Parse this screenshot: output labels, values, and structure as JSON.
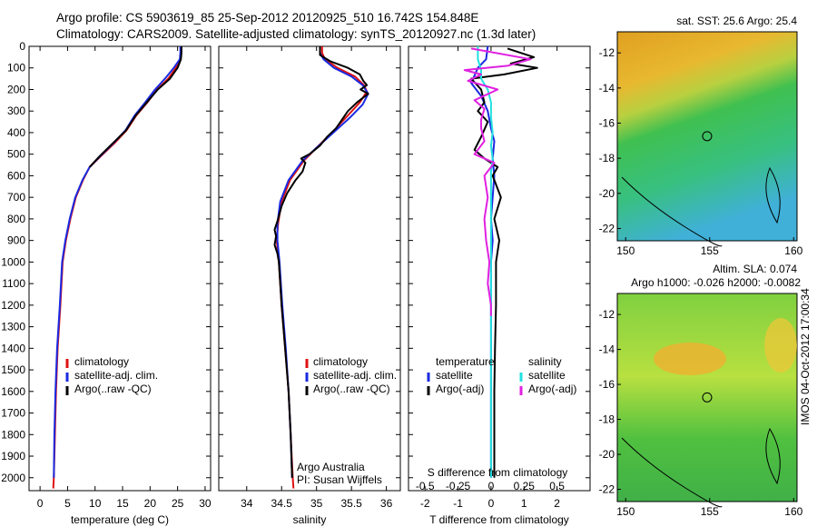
{
  "header": {
    "line1": "Argo profile: CS 5903619_85 25-Sep-2012 20120925_510 16.742S 154.848E",
    "line2": "Climatology: CARS2009. Satellite-adjusted climatology: synTS_20120927.nc (1.3d later)"
  },
  "footer_text": "IMOS 04-Oct-2012 17:00:34",
  "colors": {
    "climatology": "#e01010",
    "satellite": "#1a2ae0",
    "argo": "#000000",
    "sat_salinity": "#22e0e0",
    "argo_salinity": "#e020e0"
  },
  "chart_data": [
    {
      "type": "line",
      "id": "temperature",
      "xlabel": "temperature (deg C)",
      "ylabel": "",
      "xlim": [
        -2,
        31
      ],
      "ylim": [
        2060,
        0
      ],
      "xticks": [
        0,
        5,
        10,
        15,
        20,
        25,
        30
      ],
      "yticks": [
        0,
        100,
        200,
        300,
        400,
        500,
        600,
        700,
        800,
        900,
        1000,
        1100,
        1200,
        1300,
        1400,
        1500,
        1600,
        1700,
        1800,
        1900,
        2000
      ],
      "legend": [
        "climatology",
        "satellite-adj. clim.",
        "Argo(..raw -QC)"
      ],
      "series": [
        {
          "name": "climatology",
          "color": "#e01010",
          "points": [
            [
              25.6,
              0
            ],
            [
              25.6,
              30
            ],
            [
              25.5,
              60
            ],
            [
              24.7,
              100
            ],
            [
              23.3,
              150
            ],
            [
              21.3,
              200
            ],
            [
              19.5,
              260
            ],
            [
              17.5,
              320
            ],
            [
              15.7,
              390
            ],
            [
              13.5,
              450
            ],
            [
              11.0,
              510
            ],
            [
              9.0,
              560
            ],
            [
              7.8,
              620
            ],
            [
              6.5,
              700
            ],
            [
              5.5,
              800
            ],
            [
              4.7,
              900
            ],
            [
              4.1,
              1000
            ],
            [
              3.7,
              1200
            ],
            [
              3.2,
              1400
            ],
            [
              2.9,
              1600
            ],
            [
              2.7,
              1800
            ],
            [
              2.5,
              2000
            ],
            [
              2.4,
              2050
            ]
          ]
        },
        {
          "name": "satellite-adj. clim.",
          "color": "#1a2ae0",
          "points": [
            [
              25.5,
              0
            ],
            [
              25.5,
              30
            ],
            [
              25.4,
              60
            ],
            [
              24.3,
              100
            ],
            [
              22.7,
              150
            ],
            [
              20.9,
              200
            ],
            [
              19.1,
              260
            ],
            [
              17.2,
              320
            ],
            [
              15.5,
              390
            ],
            [
              13.3,
              450
            ],
            [
              10.9,
              510
            ],
            [
              9.0,
              560
            ],
            [
              7.7,
              620
            ],
            [
              6.4,
              700
            ],
            [
              5.4,
              800
            ],
            [
              4.6,
              900
            ],
            [
              4.0,
              1000
            ],
            [
              3.6,
              1200
            ],
            [
              3.1,
              1400
            ],
            [
              2.8,
              1600
            ],
            [
              2.6,
              1800
            ],
            [
              2.5,
              2000
            ]
          ]
        },
        {
          "name": "Argo(..raw -QC)",
          "color": "#000000",
          "points": [
            [
              25.7,
              0
            ],
            [
              25.7,
              30
            ],
            [
              25.6,
              60
            ],
            [
              25.0,
              100
            ],
            [
              23.6,
              150
            ],
            [
              21.4,
              200
            ],
            [
              19.4,
              260
            ],
            [
              17.4,
              320
            ],
            [
              15.6,
              390
            ],
            [
              13.2,
              450
            ],
            [
              10.8,
              510
            ],
            [
              9.0,
              560
            ]
          ]
        }
      ]
    },
    {
      "type": "line",
      "id": "salinity",
      "xlabel": "salinity",
      "ylabel": "",
      "xlim": [
        33.6,
        36.2
      ],
      "ylim": [
        2060,
        0
      ],
      "xticks": [
        34,
        34.5,
        35,
        35.5,
        36
      ],
      "legend": [
        "climatology",
        "satellite-adj. clim.",
        "Argo(..raw -QC)"
      ],
      "annotation": [
        "Argo Australia",
        "PI: Susan Wijffels"
      ],
      "series": [
        {
          "name": "climatology",
          "color": "#e01010",
          "points": [
            [
              35.08,
              0
            ],
            [
              35.08,
              30
            ],
            [
              35.12,
              60
            ],
            [
              35.3,
              100
            ],
            [
              35.55,
              140
            ],
            [
              35.68,
              180
            ],
            [
              35.72,
              210
            ],
            [
              35.62,
              260
            ],
            [
              35.45,
              320
            ],
            [
              35.22,
              400
            ],
            [
              35.0,
              470
            ],
            [
              34.82,
              530
            ],
            [
              34.62,
              620
            ],
            [
              34.5,
              720
            ],
            [
              34.45,
              820
            ],
            [
              34.43,
              900
            ],
            [
              34.46,
              1000
            ],
            [
              34.5,
              1200
            ],
            [
              34.55,
              1400
            ],
            [
              34.6,
              1600
            ],
            [
              34.63,
              1800
            ],
            [
              34.66,
              2000
            ],
            [
              34.67,
              2050
            ]
          ]
        },
        {
          "name": "satellite-adj. clim.",
          "color": "#1a2ae0",
          "points": [
            [
              35.05,
              0
            ],
            [
              35.05,
              30
            ],
            [
              35.1,
              60
            ],
            [
              35.25,
              100
            ],
            [
              35.5,
              140
            ],
            [
              35.66,
              180
            ],
            [
              35.74,
              220
            ],
            [
              35.66,
              270
            ],
            [
              35.48,
              330
            ],
            [
              35.24,
              400
            ],
            [
              35.0,
              470
            ],
            [
              34.8,
              530
            ],
            [
              34.6,
              620
            ],
            [
              34.48,
              720
            ],
            [
              34.44,
              820
            ],
            [
              34.44,
              900
            ],
            [
              34.47,
              1000
            ],
            [
              34.51,
              1200
            ],
            [
              34.56,
              1400
            ],
            [
              34.6,
              1600
            ],
            [
              34.63,
              1800
            ],
            [
              34.65,
              2000
            ]
          ]
        },
        {
          "name": "Argo(..raw -QC)",
          "color": "#000000",
          "points": [
            [
              35.05,
              0
            ],
            [
              35.05,
              40
            ],
            [
              35.2,
              70
            ],
            [
              35.45,
              100
            ],
            [
              35.62,
              130
            ],
            [
              35.67,
              160
            ],
            [
              35.72,
              180
            ],
            [
              35.63,
              200
            ],
            [
              35.74,
              220
            ],
            [
              35.58,
              260
            ],
            [
              35.45,
              300
            ],
            [
              35.28,
              380
            ],
            [
              35.15,
              420
            ],
            [
              35.05,
              460
            ],
            [
              34.9,
              500
            ],
            [
              34.78,
              520
            ],
            [
              34.84,
              540
            ],
            [
              34.8,
              580
            ],
            [
              34.7,
              620
            ],
            [
              34.58,
              680
            ],
            [
              34.5,
              740
            ],
            [
              34.45,
              800
            ],
            [
              34.4,
              850
            ],
            [
              34.42,
              880
            ],
            [
              34.4,
              920
            ],
            [
              34.44,
              960
            ],
            [
              34.46,
              1000
            ],
            [
              34.5,
              1200
            ],
            [
              34.55,
              1400
            ],
            [
              34.6,
              1600
            ],
            [
              34.63,
              1800
            ],
            [
              34.65,
              2000
            ]
          ]
        }
      ]
    },
    {
      "type": "line",
      "id": "difference",
      "xlabel": "T difference from climatology",
      "xlabel_top": "S difference from climatology",
      "xlim": [
        -2.5,
        3.0
      ],
      "ylim": [
        2060,
        0
      ],
      "xticks": [
        -2,
        -1,
        0,
        1,
        2
      ],
      "xticks_top": [
        [
          "-0.5",
          -2
        ],
        [
          "-0.25",
          -1
        ],
        [
          "0",
          0
        ],
        [
          "0.25",
          1
        ],
        [
          "0.5",
          2
        ]
      ],
      "legend_left_title": "temperature",
      "legend_right_title": "salinity",
      "legend_left": [
        "satellite",
        "Argo(-adj)"
      ],
      "legend_right": [
        "satellite",
        "Argo(-adj)"
      ],
      "series": [
        {
          "name": "temperature satellite",
          "color": "#1a2ae0",
          "points": [
            [
              -0.1,
              0
            ],
            [
              -0.15,
              60
            ],
            [
              -0.4,
              100
            ],
            [
              -0.6,
              170
            ],
            [
              -0.3,
              230
            ],
            [
              -0.1,
              300
            ],
            [
              0.0,
              380
            ],
            [
              0.1,
              440
            ],
            [
              0.05,
              520
            ],
            [
              0.1,
              600
            ],
            [
              0.05,
              700
            ],
            [
              0.0,
              800
            ],
            [
              0.05,
              900
            ],
            [
              0.0,
              1000
            ],
            [
              0.0,
              1200
            ],
            [
              0.0,
              1400
            ],
            [
              0.0,
              1600
            ],
            [
              0.0,
              1800
            ],
            [
              0.0,
              2000
            ]
          ]
        },
        {
          "name": "temperature Argo(-adj)",
          "color": "#000000",
          "points": [
            [
              0.5,
              10
            ],
            [
              1.3,
              50
            ],
            [
              0.6,
              80
            ],
            [
              1.4,
              100
            ],
            [
              0.4,
              130
            ],
            [
              -0.6,
              150
            ],
            [
              -0.3,
              200
            ],
            [
              -0.2,
              260
            ],
            [
              -0.4,
              300
            ],
            [
              -0.1,
              350
            ],
            [
              -0.3,
              420
            ],
            [
              -0.5,
              480
            ],
            [
              -0.2,
              520
            ],
            [
              0.2,
              560
            ],
            [
              0.05,
              600
            ],
            [
              0.3,
              700
            ],
            [
              0.1,
              800
            ],
            [
              0.25,
              900
            ],
            [
              0.15,
              1000
            ],
            [
              0.15,
              1200
            ],
            [
              0.12,
              1400
            ],
            [
              0.1,
              1600
            ],
            [
              0.1,
              1800
            ],
            [
              0.1,
              2000
            ]
          ]
        },
        {
          "name": "salinity satellite",
          "color": "#22e0e0",
          "points": [
            [
              -0.4,
              0
            ],
            [
              -0.4,
              60
            ],
            [
              -0.3,
              110
            ],
            [
              -0.3,
              150
            ],
            [
              -0.1,
              200
            ],
            [
              0.0,
              260
            ],
            [
              0.0,
              330
            ],
            [
              0.05,
              400
            ],
            [
              0.0,
              460
            ],
            [
              0.05,
              520
            ],
            [
              0.0,
              580
            ],
            [
              0.0,
              650
            ],
            [
              0.0,
              720
            ],
            [
              0.0,
              800
            ],
            [
              0.0,
              900
            ],
            [
              0.0,
              1000
            ],
            [
              0.0,
              1200
            ],
            [
              0.0,
              1400
            ],
            [
              0.0,
              1600
            ],
            [
              0.0,
              1800
            ],
            [
              0.0,
              2000
            ]
          ]
        },
        {
          "name": "salinity Argo(-adj)",
          "color": "#e020e0",
          "points": [
            [
              -0.6,
              10
            ],
            [
              1.2,
              60
            ],
            [
              0.5,
              90
            ],
            [
              -0.8,
              110
            ],
            [
              -0.3,
              130
            ],
            [
              -0.7,
              160
            ],
            [
              0.2,
              200
            ],
            [
              -0.5,
              250
            ],
            [
              -0.2,
              290
            ],
            [
              -0.3,
              340
            ],
            [
              -0.3,
              380
            ],
            [
              -0.2,
              440
            ],
            [
              -0.5,
              500
            ],
            [
              0.1,
              540
            ],
            [
              -0.2,
              600
            ],
            [
              -0.1,
              700
            ],
            [
              -0.2,
              800
            ],
            [
              -0.15,
              900
            ],
            [
              -0.05,
              1000
            ],
            [
              -0.1,
              1100
            ],
            [
              0.0,
              1200
            ],
            [
              0.0,
              1250
            ]
          ]
        }
      ]
    },
    {
      "type": "heatmap",
      "id": "sst-map",
      "title": "sat. SST: 25.6  Argo: 25.4",
      "xlim": [
        149.5,
        160.2
      ],
      "ylim": [
        -22.7,
        -10.8
      ],
      "xticks": [
        150,
        155,
        160
      ],
      "yticks": [
        -12,
        -14,
        -16,
        -18,
        -20,
        -22
      ],
      "marker": [
        154.848,
        -16.742
      ]
    },
    {
      "type": "heatmap",
      "id": "sla-map",
      "title": [
        "Altim. SLA: 0.074",
        "Argo h1000: -0.026 h2000: -0.0082"
      ],
      "xlim": [
        149.5,
        160.2
      ],
      "ylim": [
        -22.7,
        -10.8
      ],
      "xticks": [
        150,
        155,
        160
      ],
      "yticks": [
        -12,
        -14,
        -16,
        -18,
        -20,
        -22
      ],
      "marker": [
        154.848,
        -16.742
      ]
    }
  ]
}
